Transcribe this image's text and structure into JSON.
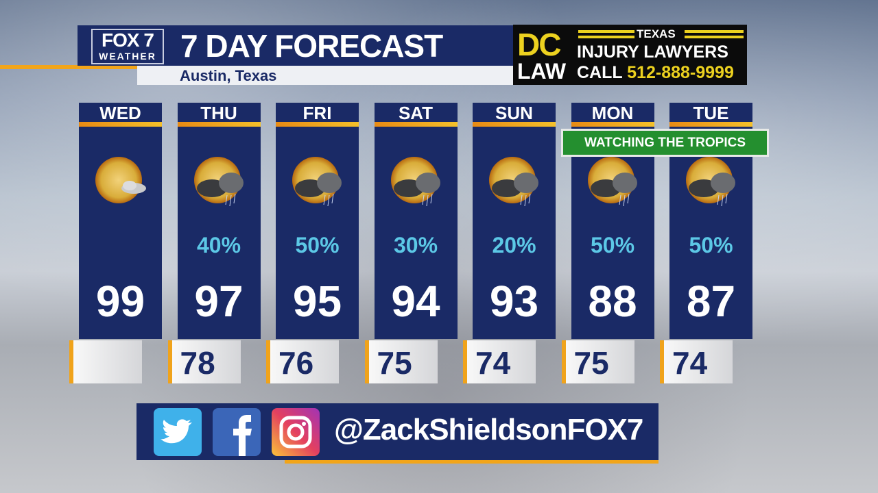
{
  "header": {
    "logo_top": "FOX 7",
    "logo_bottom": "WEATHER",
    "title": "7 DAY FORECAST",
    "location": "Austin, Texas"
  },
  "ad": {
    "brand_top": "DC",
    "brand_bottom": "LAW",
    "state": "TEXAS",
    "line1": "INJURY LAWYERS",
    "call_label": "CALL",
    "phone": "512-888-9999"
  },
  "days": [
    {
      "day": "WED",
      "icon": "mostly-sunny-icon",
      "precip": "",
      "high": "99",
      "low": ""
    },
    {
      "day": "THU",
      "icon": "sun-thunderstorm-icon",
      "precip": "40%",
      "high": "97",
      "low": "78"
    },
    {
      "day": "FRI",
      "icon": "sun-thunderstorm-icon",
      "precip": "50%",
      "high": "95",
      "low": "76"
    },
    {
      "day": "SAT",
      "icon": "sun-thunderstorm-icon",
      "precip": "30%",
      "high": "94",
      "low": "75"
    },
    {
      "day": "SUN",
      "icon": "sun-thunderstorm-icon",
      "precip": "20%",
      "high": "93",
      "low": "74"
    },
    {
      "day": "MON",
      "icon": "sun-thunderstorm-icon",
      "precip": "50%",
      "high": "88",
      "low": "75"
    },
    {
      "day": "TUE",
      "icon": "sun-thunderstorm-icon",
      "precip": "50%",
      "high": "87",
      "low": "74"
    }
  ],
  "banner": "WATCHING THE TROPICS",
  "social": {
    "handle": "@ZackShieldsonFOX7",
    "icons": [
      "twitter-icon",
      "facebook-icon",
      "instagram-icon"
    ]
  },
  "colors": {
    "navy": "#1a2a66",
    "accent": "#f2a51a",
    "precip": "#5cc8e6",
    "banner": "#248f2f"
  }
}
